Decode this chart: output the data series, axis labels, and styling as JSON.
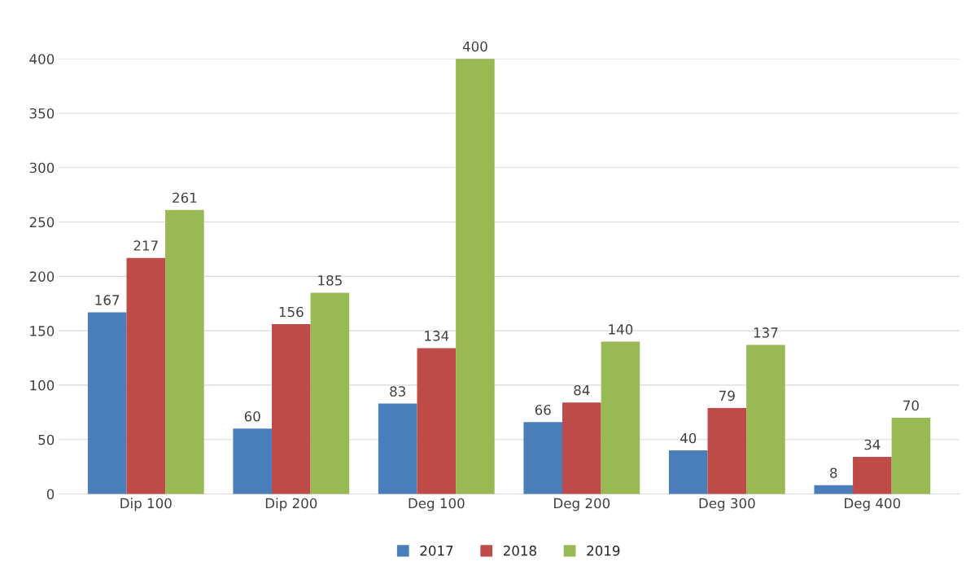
{
  "chart_data": {
    "type": "bar",
    "categories": [
      "Dip 100",
      "Dip 200",
      "Deg 100",
      "Deg 200",
      "Deg 300",
      "Deg 400"
    ],
    "series": [
      {
        "name": "2017",
        "color": "#4a7ebb",
        "values": [
          167,
          60,
          83,
          66,
          40,
          8
        ]
      },
      {
        "name": "2018",
        "color": "#be4b48",
        "values": [
          217,
          156,
          134,
          84,
          79,
          34
        ]
      },
      {
        "name": "2019",
        "color": "#98b954",
        "values": [
          261,
          185,
          400,
          140,
          137,
          70
        ]
      }
    ],
    "ylim": [
      0,
      400
    ],
    "yticks": [
      0,
      50,
      100,
      150,
      200,
      250,
      300,
      350,
      400
    ],
    "grid": "y",
    "legend": "bottom",
    "data_labels": true
  }
}
